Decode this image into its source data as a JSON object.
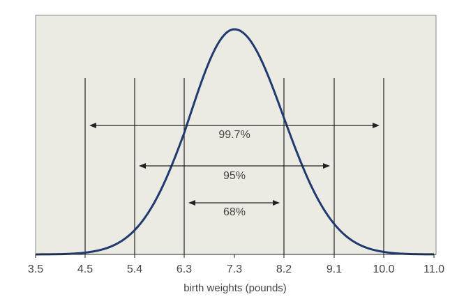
{
  "chart_data": {
    "type": "line",
    "title": "",
    "xlabel": "birth weights (pounds)",
    "ylabel": "",
    "xlim": [
      3.5,
      11.0
    ],
    "x_ticks": [
      "3.5",
      "4.5",
      "5.4",
      "6.3",
      "7.3",
      "8.2",
      "9.1",
      "10.0",
      "11.0"
    ],
    "x_tick_values": [
      3.5,
      4.5,
      5.4,
      6.3,
      7.3,
      8.2,
      9.1,
      10.0,
      11.0
    ],
    "distribution": {
      "kind": "normal",
      "mean": 7.3,
      "sd": 0.9
    },
    "reference_lines_x": [
      4.5,
      5.4,
      6.3,
      8.2,
      9.1,
      10.0
    ],
    "intervals": [
      {
        "label": "99.7%",
        "from": 4.5,
        "to": 10.0
      },
      {
        "label": "95%",
        "from": 5.4,
        "to": 9.1
      },
      {
        "label": "68%",
        "from": 6.3,
        "to": 8.2
      }
    ],
    "grid": false,
    "legend": "none"
  },
  "colors": {
    "plot_background": "#ebeae3",
    "plot_border": "#8a8a8a",
    "curve": "#1f3a6e",
    "lines": "#222222",
    "text": "#444444"
  }
}
